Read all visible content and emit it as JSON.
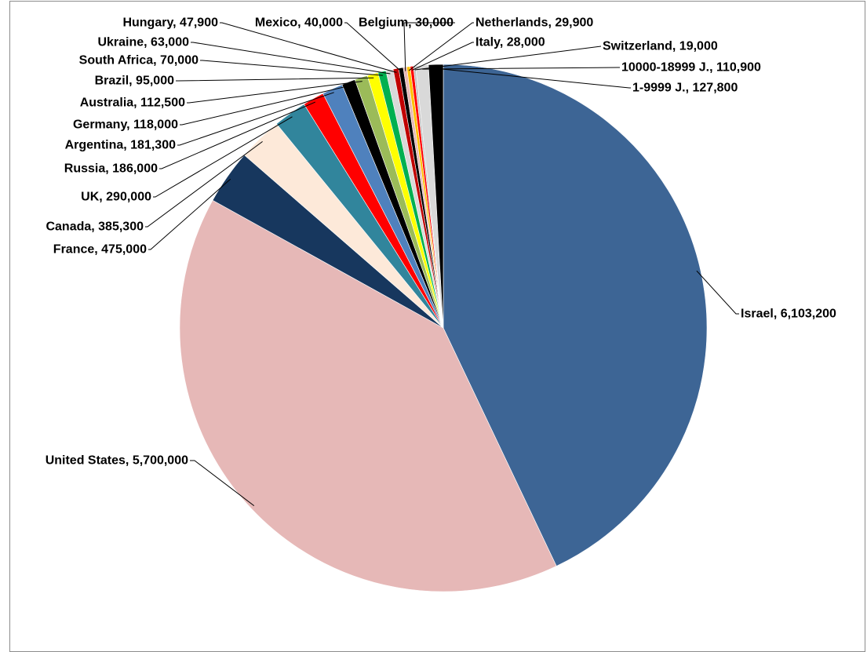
{
  "chart_data": {
    "type": "pie",
    "title": "",
    "legend": "none",
    "start_angle_deg": 0,
    "direction": "clockwise",
    "slices": [
      {
        "label": "Israel, 6,103,200",
        "name": "Israel",
        "value": 6103200,
        "color": "#3d6595"
      },
      {
        "label": "United States, 5,700,000",
        "name": "United States",
        "value": 5700000,
        "color": "#e6b8b7"
      },
      {
        "label": "France, 475,000",
        "name": "France",
        "value": 475000,
        "color": "#17375e"
      },
      {
        "label": "Canada, 385,300",
        "name": "Canada",
        "value": 385300,
        "color": "#fde9d9"
      },
      {
        "label": "UK, 290,000",
        "name": "UK",
        "value": 290000,
        "color": "#31859c"
      },
      {
        "label": "Russia, 186,000",
        "name": "Russia",
        "value": 186000,
        "color": "#ff0000"
      },
      {
        "label": "Argentina, 181,300",
        "name": "Argentina",
        "value": 181300,
        "color": "#4f81bd"
      },
      {
        "label": "Germany, 118,000",
        "name": "Germany",
        "value": 118000,
        "color": "#000000"
      },
      {
        "label": "Australia, 112,500",
        "name": "Australia",
        "value": 112500,
        "color": "#9bbb59"
      },
      {
        "label": "Brazil, 95,000",
        "name": "Brazil",
        "value": 95000,
        "color": "#ffff00"
      },
      {
        "label": "South Africa, 70,000",
        "name": "South Africa",
        "value": 70000,
        "color": "#00b050"
      },
      {
        "label": "Ukraine, 63,000",
        "name": "Ukraine",
        "value": 63000,
        "color": "#d9d9d9"
      },
      {
        "label": "Hungary, 47,900",
        "name": "Hungary",
        "value": 47900,
        "color": "#c00000"
      },
      {
        "label": "Mexico, 40,000",
        "name": "Mexico",
        "value": 40000,
        "color": "#000000"
      },
      {
        "label": "Belgium, 30,000",
        "name": "Belgium",
        "value": 30000,
        "color": "#e6b8b7"
      },
      {
        "label": "Netherlands, 29,900",
        "name": "Netherlands",
        "value": 29900,
        "color": "#ffc000"
      },
      {
        "label": "Italy, 28,000",
        "name": "Italy",
        "value": 28000,
        "color": "#ff0000"
      },
      {
        "label": "Switzerland, 19,000",
        "name": "Switzerland",
        "value": 19000,
        "color": "#c0c0c0"
      },
      {
        "label": "10000-18999 J., 110,900",
        "name": "10000-18999 J.",
        "value": 110900,
        "color": "#d9d9d9"
      },
      {
        "label": "1-9999 J., 127,800",
        "name": "1-9999 J.",
        "value": 127800,
        "color": "#000000"
      }
    ]
  }
}
